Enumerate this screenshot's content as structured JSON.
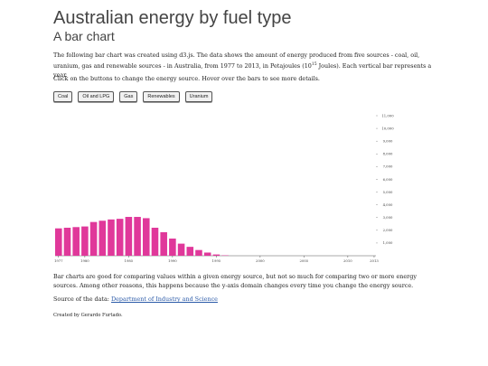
{
  "page": {
    "title": "Australian energy by fuel type",
    "subtitle": "A bar chart",
    "intro_text_a": "The following bar chart was created using d3.js. The data shows the amount of energy produced from five sources - coal, oil, uranium, gas and renewable sources - in Australia, from 1977 to 2013, in Petajoules (10",
    "intro_sup": "15",
    "intro_text_b": " Joules). Each vertical bar represents a year.",
    "instruction": "Click on the buttons to change the energy source. Hover over the bars to see more details.",
    "outro": "Bar charts are good for comparing values within a given energy source, but not so much for comparing two or more energy sources. Among other reasons, this happens because the y-axis domain changes every time you change the energy source.",
    "source_label": "Source of the data:",
    "source_link": "Department of Industry and Science",
    "credit": "Created by Gerardo Furtado."
  },
  "buttons": [
    {
      "label": "Coal"
    },
    {
      "label": "Oil and LPG"
    },
    {
      "label": "Gas"
    },
    {
      "label": "Renewables"
    },
    {
      "label": "Uranium"
    }
  ],
  "chart_data": {
    "type": "bar",
    "bar_color": "#e0389a",
    "categories": [
      1977,
      1978,
      1979,
      1980,
      1981,
      1982,
      1983,
      1984,
      1985,
      1986,
      1987,
      1988,
      1989,
      1990,
      1991,
      1992,
      1993,
      1994,
      1995,
      1996,
      1997,
      1998,
      1999,
      2000,
      2001,
      2002,
      2003,
      2004,
      2005,
      2006,
      2007,
      2008,
      2009,
      2010,
      2011,
      2012,
      2013
    ],
    "values": [
      2150,
      2200,
      2250,
      2300,
      2650,
      2750,
      2850,
      2900,
      3050,
      3050,
      2950,
      2200,
      1850,
      1350,
      950,
      700,
      450,
      250,
      100,
      30,
      0,
      0,
      0,
      0,
      0,
      0,
      0,
      0,
      0,
      0,
      0,
      0,
      0,
      0,
      0,
      0,
      0
    ],
    "x_ticks": [
      "1977",
      "1980",
      "1985",
      "1990",
      "1995",
      "2000",
      "2005",
      "2010",
      "2013"
    ],
    "y_ticks": [
      "1,000",
      "2,000",
      "3,000",
      "4,000",
      "5,000",
      "6,000",
      "7,000",
      "8,000",
      "9,000",
      "10,000",
      "11,000"
    ],
    "ylim": [
      0,
      11000
    ],
    "y_axis_side": "right"
  }
}
